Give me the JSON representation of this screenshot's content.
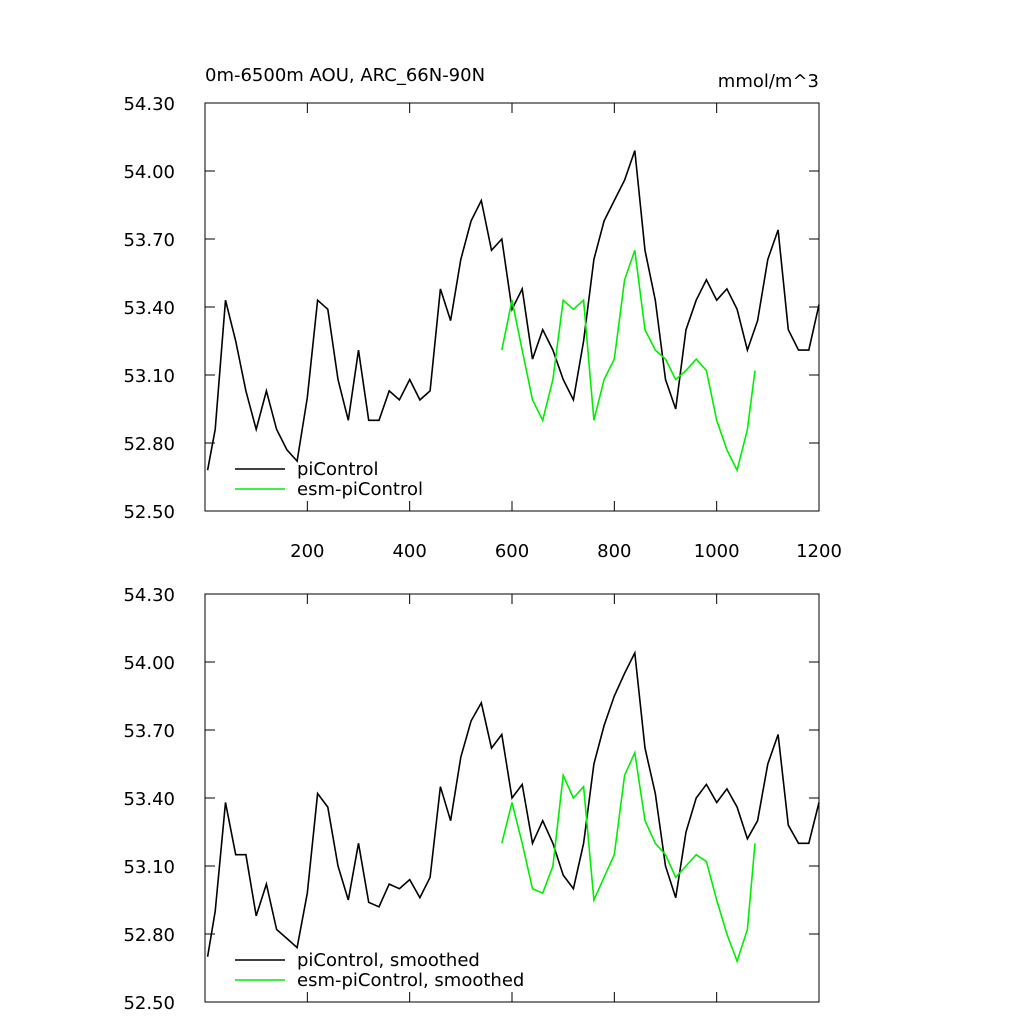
{
  "chart_data": [
    {
      "type": "line",
      "title": "0m-6500m AOU, ARC_66N-90N",
      "units": "mmol/m^3",
      "xlim": [
        0,
        1200
      ],
      "xticks": [
        200,
        400,
        600,
        800,
        1000,
        1200
      ],
      "ylim": [
        52.5,
        54.3
      ],
      "yticks": [
        {
          "value": 52.5,
          "label": "52.50"
        },
        {
          "value": 52.8,
          "label": "52.80"
        },
        {
          "value": 53.1,
          "label": "53.10"
        },
        {
          "value": 53.4,
          "label": "53.40"
        },
        {
          "value": 53.7,
          "label": "53.70"
        },
        {
          "value": 54.0,
          "label": "54.00"
        },
        {
          "value": 54.3,
          "label": "54.30"
        }
      ],
      "legend": "lower left",
      "series": [
        {
          "name": "piControl",
          "color": "#000000",
          "x": [
            5,
            20,
            40,
            60,
            80,
            100,
            120,
            140,
            160,
            180,
            200,
            220,
            240,
            260,
            280,
            300,
            320,
            340,
            360,
            380,
            400,
            420,
            440,
            460,
            480,
            500,
            520,
            540,
            560,
            580,
            600,
            620,
            640,
            660,
            680,
            700,
            720,
            740,
            760,
            780,
            800,
            820,
            840,
            860,
            880,
            900,
            920,
            940,
            960,
            980,
            1000,
            1020,
            1040,
            1060,
            1080,
            1100,
            1120,
            1140,
            1160,
            1180,
            1200
          ],
          "values": [
            52.68,
            52.86,
            53.43,
            53.25,
            53.03,
            52.86,
            53.03,
            52.86,
            52.77,
            52.72,
            53.0,
            53.43,
            53.39,
            53.08,
            52.9,
            53.21,
            52.9,
            52.9,
            53.03,
            52.99,
            53.08,
            52.99,
            53.03,
            53.48,
            53.34,
            53.61,
            53.78,
            53.87,
            53.65,
            53.7,
            53.39,
            53.48,
            53.17,
            53.3,
            53.21,
            53.08,
            52.99,
            53.25,
            53.61,
            53.78,
            53.87,
            53.96,
            54.09,
            53.65,
            53.43,
            53.08,
            52.95,
            53.3,
            53.43,
            53.52,
            53.43,
            53.48,
            53.39,
            53.21,
            53.34,
            53.61,
            53.74,
            53.3,
            53.21,
            53.21,
            53.41
          ]
        },
        {
          "name": "esm-piControl",
          "color": "#00ee00",
          "x": [
            580,
            600,
            620,
            640,
            660,
            680,
            700,
            720,
            740,
            760,
            780,
            800,
            820,
            840,
            860,
            880,
            900,
            920,
            940,
            960,
            980,
            1000,
            1020,
            1040,
            1060,
            1075
          ],
          "values": [
            53.21,
            53.43,
            53.21,
            52.99,
            52.9,
            53.08,
            53.43,
            53.39,
            53.43,
            52.9,
            53.08,
            53.17,
            53.52,
            53.65,
            53.3,
            53.21,
            53.17,
            53.08,
            53.12,
            53.17,
            53.12,
            52.9,
            52.77,
            52.68,
            52.86,
            53.12
          ]
        }
      ]
    },
    {
      "type": "line",
      "xlim": [
        0,
        1200
      ],
      "xticks": [
        200,
        400,
        600,
        800,
        1000,
        1200
      ],
      "ylim": [
        52.5,
        54.3
      ],
      "yticks": [
        {
          "value": 52.5,
          "label": "52.50"
        },
        {
          "value": 52.8,
          "label": "52.80"
        },
        {
          "value": 53.1,
          "label": "53.10"
        },
        {
          "value": 53.4,
          "label": "53.40"
        },
        {
          "value": 53.7,
          "label": "53.70"
        },
        {
          "value": 54.0,
          "label": "54.00"
        },
        {
          "value": 54.3,
          "label": "54.30"
        }
      ],
      "legend": "lower left",
      "series": [
        {
          "name": "piControl, smoothed",
          "color": "#000000",
          "x": [
            5,
            20,
            40,
            60,
            80,
            100,
            120,
            140,
            160,
            180,
            200,
            220,
            240,
            260,
            280,
            300,
            320,
            340,
            360,
            380,
            400,
            420,
            440,
            460,
            480,
            500,
            520,
            540,
            560,
            580,
            600,
            620,
            640,
            660,
            680,
            700,
            720,
            740,
            760,
            780,
            800,
            820,
            840,
            860,
            880,
            900,
            920,
            940,
            960,
            980,
            1000,
            1020,
            1040,
            1060,
            1080,
            1100,
            1120,
            1140,
            1160,
            1180,
            1200
          ],
          "values": [
            52.7,
            52.9,
            53.38,
            53.15,
            53.15,
            52.88,
            53.02,
            52.82,
            52.78,
            52.74,
            52.98,
            53.42,
            53.36,
            53.1,
            52.95,
            53.2,
            52.94,
            52.92,
            53.02,
            53.0,
            53.04,
            52.96,
            53.05,
            53.45,
            53.3,
            53.58,
            53.74,
            53.82,
            53.62,
            53.68,
            53.4,
            53.46,
            53.2,
            53.3,
            53.2,
            53.06,
            53.0,
            53.2,
            53.55,
            53.72,
            53.85,
            53.95,
            54.04,
            53.62,
            53.42,
            53.1,
            52.96,
            53.25,
            53.4,
            53.46,
            53.38,
            53.44,
            53.36,
            53.22,
            53.3,
            53.55,
            53.68,
            53.28,
            53.2,
            53.2,
            53.38
          ]
        },
        {
          "name": "esm-piControl, smoothed",
          "color": "#00ee00",
          "x": [
            580,
            600,
            620,
            640,
            660,
            680,
            700,
            720,
            740,
            760,
            780,
            800,
            820,
            840,
            860,
            880,
            900,
            920,
            940,
            960,
            980,
            1000,
            1020,
            1040,
            1060,
            1075
          ],
          "values": [
            53.2,
            53.38,
            53.2,
            53.0,
            52.98,
            53.1,
            53.5,
            53.4,
            53.45,
            52.95,
            53.05,
            53.15,
            53.5,
            53.6,
            53.3,
            53.2,
            53.15,
            53.05,
            53.1,
            53.15,
            53.12,
            52.95,
            52.8,
            52.68,
            52.82,
            53.2
          ]
        }
      ]
    }
  ]
}
